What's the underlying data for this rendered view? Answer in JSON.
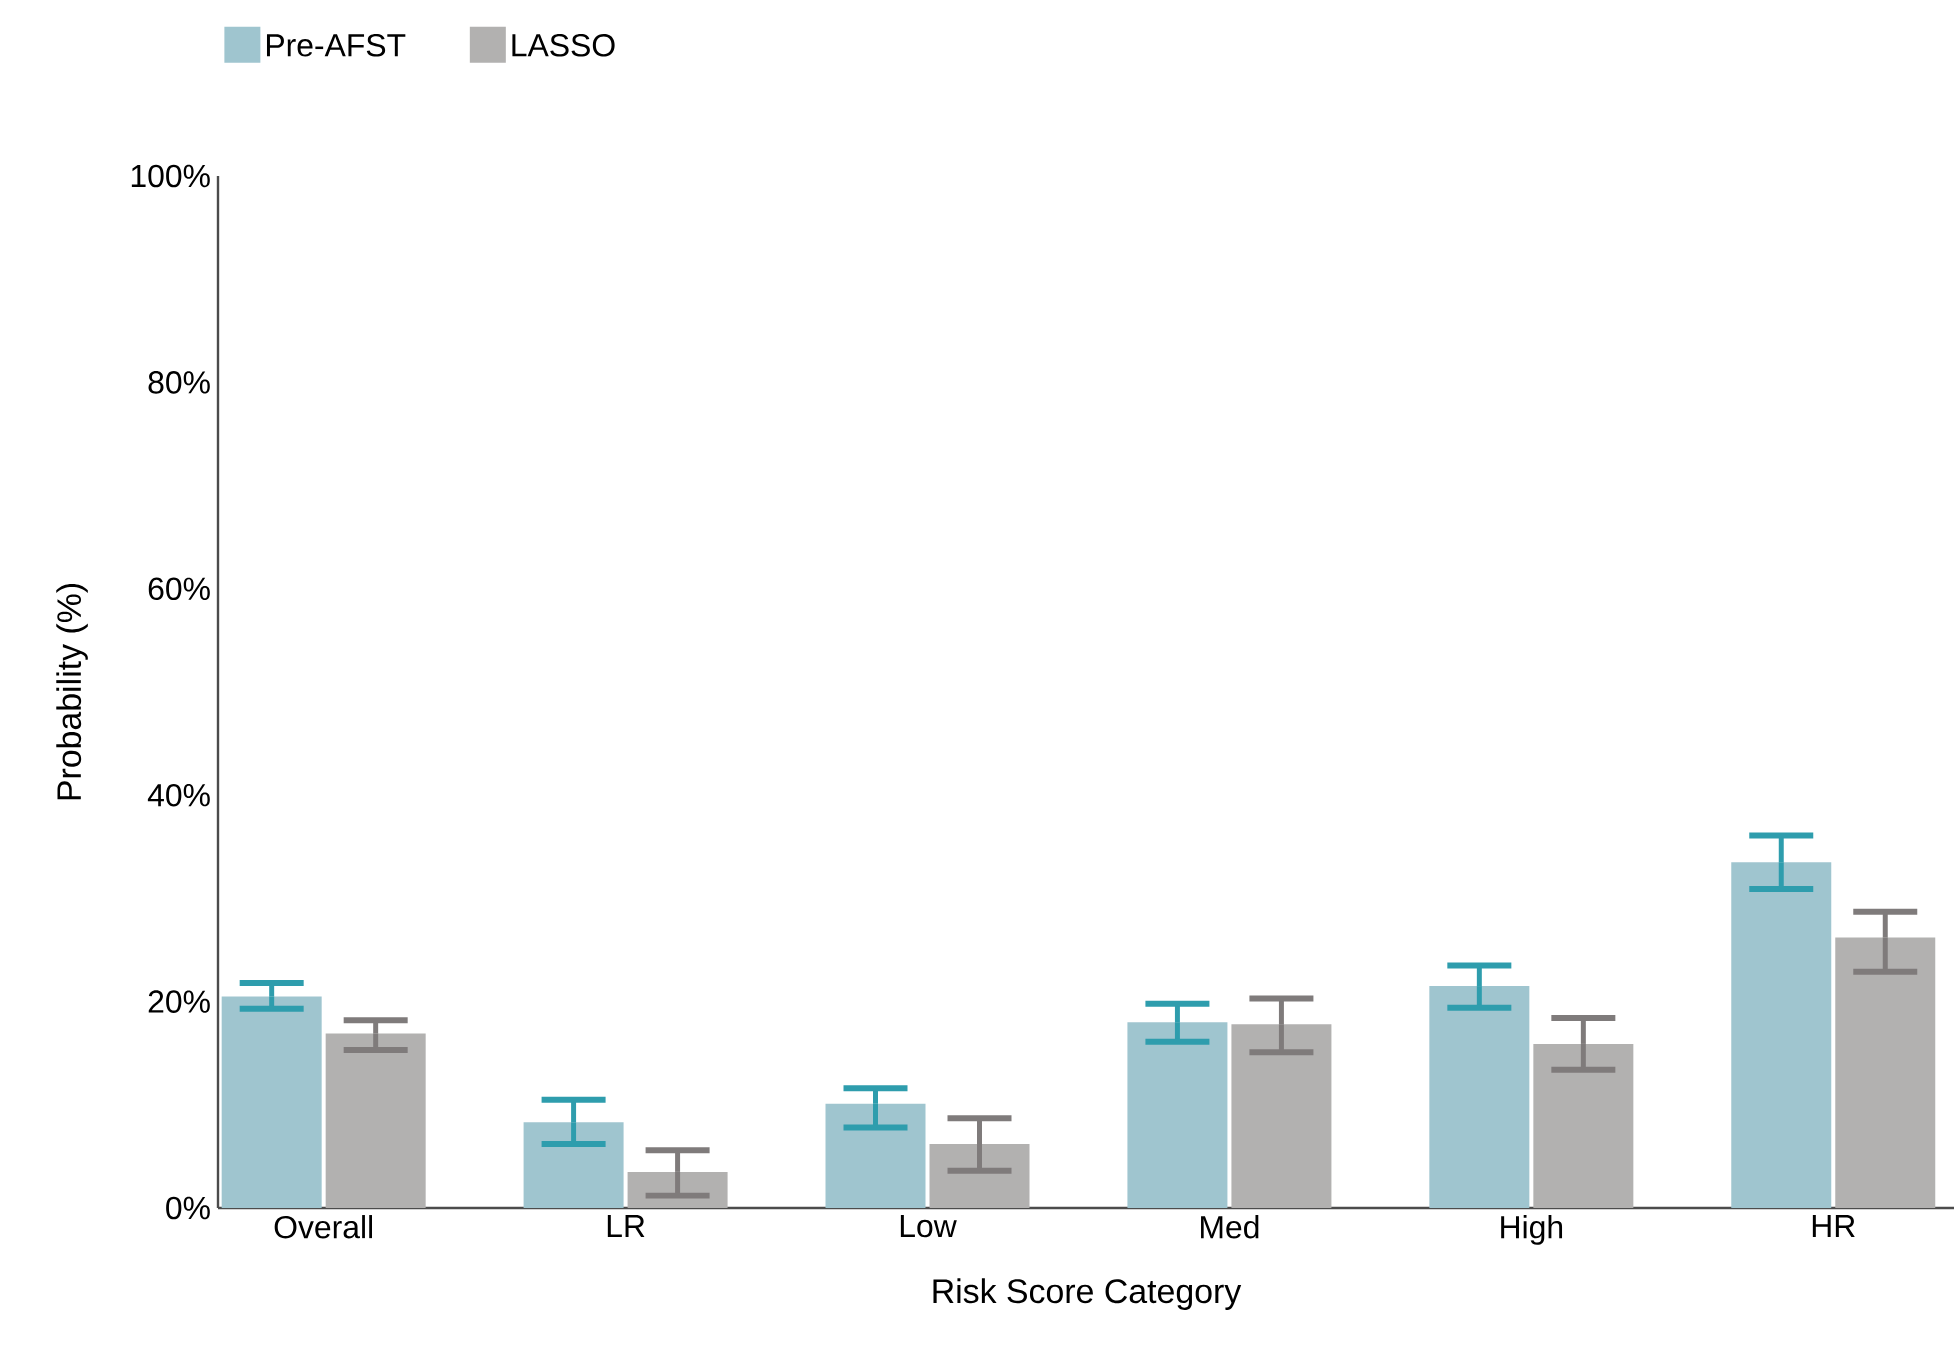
{
  "chart_data": {
    "type": "bar",
    "xlabel": "Risk Score Category",
    "ylabel": "Probability (%)",
    "categories": [
      "Overall",
      "LR",
      "Low",
      "Med",
      "High",
      "HR"
    ],
    "series": [
      {
        "name": "Pre-AFST",
        "color": "#9fc5cf",
        "values": [
          20.5,
          8.3,
          10.1,
          18.0,
          21.5,
          33.5
        ],
        "errors": [
          [
            19.3,
            21.8
          ],
          [
            6.2,
            10.5
          ],
          [
            7.8,
            11.6
          ],
          [
            16.1,
            19.8
          ],
          [
            19.4,
            23.5
          ],
          [
            30.9,
            36.1
          ]
        ]
      },
      {
        "name": "LASSO",
        "color": "#b2b1b0",
        "values": [
          16.9,
          3.5,
          6.2,
          17.8,
          15.9,
          26.2
        ],
        "errors": [
          [
            15.3,
            18.2
          ],
          [
            1.2,
            5.6
          ],
          [
            3.6,
            8.7
          ],
          [
            15.1,
            20.3
          ],
          [
            13.4,
            18.4
          ],
          [
            22.9,
            28.7
          ]
        ]
      }
    ],
    "ylim": [
      0,
      100
    ],
    "yticks": [
      {
        "value": 0,
        "label": "0%"
      },
      {
        "value": 20,
        "label": "20%"
      },
      {
        "value": 40,
        "label": "40%"
      },
      {
        "value": 60,
        "label": "60%"
      },
      {
        "value": 80,
        "label": "80%"
      },
      {
        "value": 100,
        "label": "100%"
      }
    ],
    "grid": false,
    "legend": "top left"
  }
}
